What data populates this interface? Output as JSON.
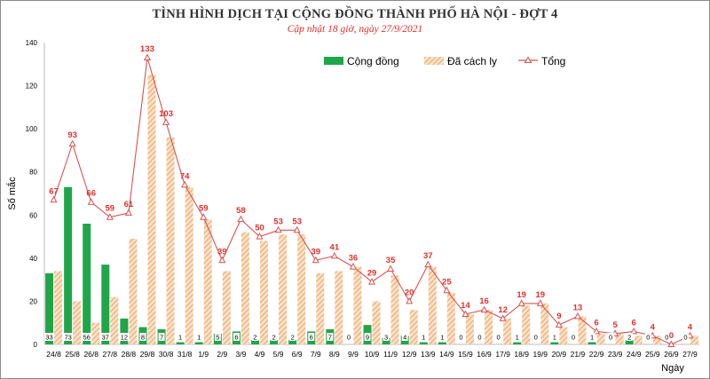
{
  "chart_data": {
    "type": "bar",
    "title": "TÌNH HÌNH DỊCH TẠI CỘNG ĐỒNG THÀNH PHỐ HÀ NỘI - ĐỢT 4",
    "subtitle": "Cập nhật 18 giờ, ngày 27/9/2021",
    "xlabel": "Ngày",
    "ylabel": "Số mắc",
    "ylim": [
      0,
      140
    ],
    "yticks": [
      0,
      20,
      40,
      60,
      80,
      100,
      120,
      140
    ],
    "categories": [
      "24/8",
      "25/8",
      "26/8",
      "27/8",
      "28/8",
      "29/8",
      "30/8",
      "31/8",
      "1/9",
      "2/9",
      "3/9",
      "4/9",
      "5/9",
      "6/9",
      "7/9",
      "8/9",
      "9/9",
      "10/9",
      "11/9",
      "12/9",
      "13/9",
      "14/9",
      "15/9",
      "16/9",
      "17/9",
      "18/9",
      "19/9",
      "20/9",
      "21/9",
      "22/9",
      "23/9",
      "24/9",
      "25/9",
      "26/9",
      "27/9"
    ],
    "series": [
      {
        "name": "Cộng đồng",
        "type": "bar",
        "color": "#1fa64a",
        "values": [
          33,
          73,
          56,
          37,
          12,
          8,
          7,
          1,
          1,
          5,
          6,
          2,
          2,
          2,
          6,
          7,
          0,
          9,
          3,
          4,
          1,
          1,
          0,
          0,
          0,
          1,
          0,
          1,
          0,
          1,
          0,
          2,
          0,
          0,
          0
        ]
      },
      {
        "name": "Đã cách ly",
        "type": "bar",
        "color": "#f0a86a",
        "values": [
          34,
          20,
          10,
          22,
          49,
          125,
          96,
          73,
          58,
          34,
          52,
          48,
          51,
          51,
          33,
          34,
          36,
          20,
          32,
          16,
          36,
          24,
          14,
          16,
          12,
          18,
          19,
          8,
          13,
          5,
          5,
          4,
          4,
          0,
          4
        ]
      },
      {
        "name": "Tổng",
        "type": "line",
        "color": "#d9534f",
        "values": [
          67,
          93,
          66,
          59,
          61,
          133,
          103,
          74,
          59,
          39,
          58,
          50,
          53,
          53,
          39,
          41,
          36,
          29,
          35,
          20,
          37,
          25,
          14,
          16,
          12,
          19,
          19,
          9,
          13,
          6,
          5,
          6,
          4,
          0,
          4
        ]
      }
    ],
    "legend": "top-right",
    "grid": false
  }
}
